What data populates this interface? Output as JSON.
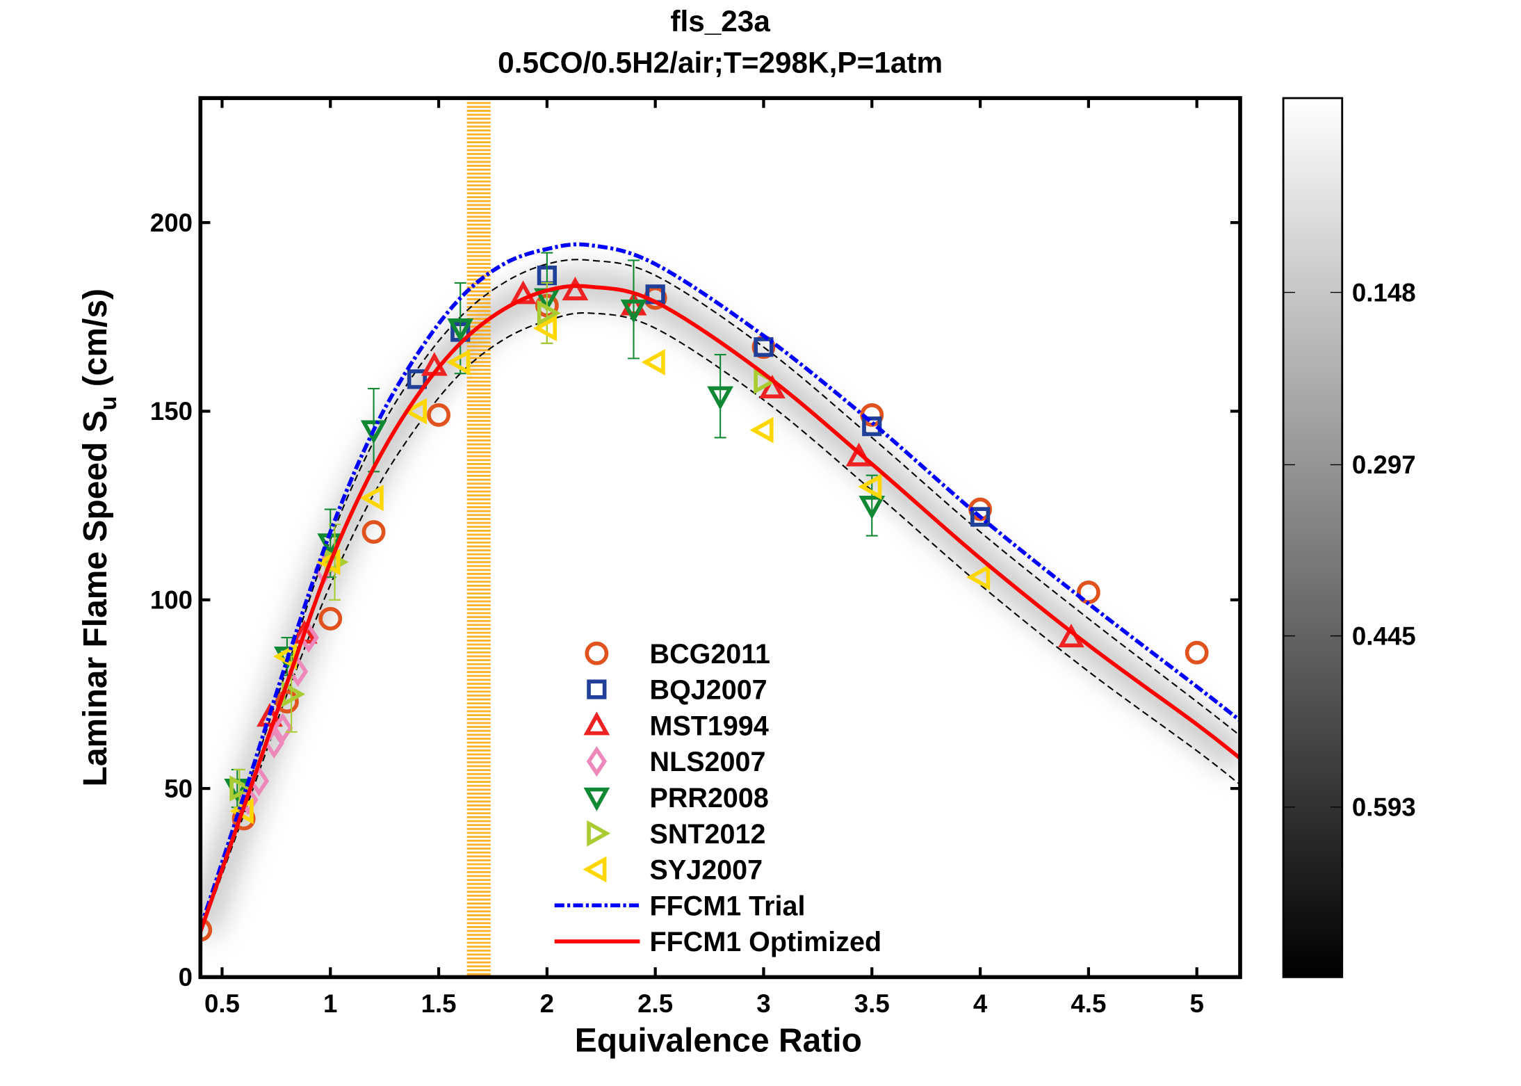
{
  "chart_data": {
    "type": "scatter",
    "title": "fls_23a",
    "subtitle": "0.5CO/0.5H2/air;T=298K,P=1atm",
    "xlabel": "Equivalence Ratio",
    "ylabel_main": "Laminar Flame Speed S",
    "ylabel_sub": "u",
    "ylabel_unit": " (cm/s)",
    "xlim": [
      0.4,
      5.2
    ],
    "ylim": [
      0,
      233
    ],
    "xticks": [
      0.5,
      1,
      1.5,
      2,
      2.5,
      3,
      3.5,
      4,
      4.5,
      5
    ],
    "xtick_labels": [
      "0.5",
      "1",
      "1.5",
      "2",
      "2.5",
      "3",
      "3.5",
      "4",
      "4.5",
      "5"
    ],
    "yticks": [
      0,
      50,
      100,
      150,
      200
    ],
    "ytick_labels": [
      "0",
      "50",
      "100",
      "150",
      "200"
    ],
    "grid": false,
    "legend_placement": "lower-center",
    "highlight_band": {
      "x": [
        1.63,
        1.74
      ],
      "color": "#FFA500"
    },
    "colorbar": {
      "range": [
        -0.02,
        0.74
      ],
      "colormap": "gray (white=low, black=high)",
      "ticks": [
        0.148,
        0.297,
        0.445,
        0.593
      ],
      "tick_labels": [
        "0.148",
        "0.297",
        "0.445",
        "0.593"
      ]
    },
    "series": [
      {
        "name": "BCG2011",
        "marker": "circle",
        "color": "#E0531F",
        "x": [
          0.4,
          0.6,
          0.8,
          1.0,
          1.2,
          1.5,
          2.0,
          2.5,
          3.0,
          3.5,
          4.0,
          4.5,
          5.0
        ],
        "y": [
          12.5,
          42,
          73,
          95,
          118,
          149,
          178,
          180,
          167,
          149,
          124,
          102,
          86
        ]
      },
      {
        "name": "BQJ2007",
        "marker": "square",
        "color": "#1F3F99",
        "x": [
          1.4,
          1.6,
          2.0,
          2.5,
          3.0,
          3.5,
          4.0
        ],
        "y": [
          158.5,
          171,
          186,
          181,
          167,
          146,
          122
        ]
      },
      {
        "name": "MST1994",
        "marker": "triangle-up",
        "color": "#EE2222",
        "x": [
          0.72,
          0.88,
          1.48,
          1.89,
          2.13,
          2.4,
          3.04,
          3.44,
          4.42
        ],
        "y": [
          69,
          91,
          162,
          181,
          182,
          178,
          156,
          138,
          90
        ]
      },
      {
        "name": "NLS2007",
        "marker": "diamond",
        "color": "#EE88BB",
        "x": [
          0.62,
          0.67,
          0.74,
          0.78,
          0.85,
          0.9,
          0.97
        ],
        "y": [
          47,
          52,
          62,
          66,
          81,
          90,
          108
        ]
      },
      {
        "name": "PRR2008",
        "marker": "triangle-down",
        "color": "#118833",
        "x": [
          0.57,
          0.8,
          1.0,
          1.2,
          1.6,
          2.0,
          2.4,
          2.8,
          3.5
        ],
        "y": [
          50,
          85,
          115,
          145,
          172,
          180,
          177,
          154,
          125
        ],
        "error": [
          5,
          5,
          9,
          11,
          12,
          12,
          13,
          11,
          8
        ]
      },
      {
        "name": "SNT2012",
        "marker": "triangle-right",
        "color": "#AACC33",
        "x": [
          0.58,
          0.82,
          1.02,
          2.0,
          3.0
        ],
        "y": [
          50,
          75,
          110,
          176,
          158
        ],
        "error": [
          5,
          10,
          10,
          8,
          0
        ]
      },
      {
        "name": "SYJ2007",
        "marker": "triangle-left",
        "color": "#FFD700",
        "x": [
          0.6,
          0.8,
          1.0,
          1.2,
          1.4,
          1.6,
          2.0,
          2.5,
          3.0,
          3.5,
          4.0
        ],
        "y": [
          44,
          85,
          110,
          127,
          150,
          163,
          172,
          163,
          145,
          130,
          106
        ]
      }
    ],
    "curves": [
      {
        "name": "FFCM1 Trial",
        "style": "dash-dot",
        "color": "#0000FF",
        "x": [
          0.4,
          0.6,
          0.8,
          1.0,
          1.2,
          1.4,
          1.6,
          1.8,
          2.0,
          2.2,
          2.5,
          3.0,
          3.5,
          4.0,
          4.5,
          5.0,
          5.2
        ],
        "y": [
          13,
          48,
          84,
          118,
          145,
          165,
          180,
          189,
          193,
          194,
          189,
          170,
          147,
          122,
          99,
          77,
          68
        ]
      },
      {
        "name": "FFCM1 Optimized",
        "style": "solid",
        "color": "#FF0000",
        "x": [
          0.4,
          0.6,
          0.8,
          1.0,
          1.2,
          1.4,
          1.6,
          1.8,
          2.0,
          2.2,
          2.5,
          3.0,
          3.5,
          4.0,
          4.5,
          5.0,
          5.2
        ],
        "y": [
          12,
          45,
          78,
          110,
          135,
          154,
          168,
          177,
          182,
          183,
          179,
          160,
          136,
          111,
          88,
          67,
          58
        ]
      }
    ],
    "uncertainty_bounds": {
      "style": "dashed",
      "color": "#000000",
      "x": [
        0.4,
        0.6,
        0.8,
        1.0,
        1.2,
        1.4,
        1.6,
        1.8,
        2.0,
        2.2,
        2.5,
        3.0,
        3.5,
        4.0,
        4.5,
        5.0,
        5.2
      ],
      "upper": [
        12.5,
        47,
        82,
        116,
        142,
        161,
        175,
        184,
        189,
        190,
        186,
        167,
        143,
        118,
        95,
        73,
        64
      ],
      "lower": [
        11.5,
        43,
        75,
        104,
        128,
        146,
        160,
        169,
        174,
        176,
        172,
        153,
        129,
        104,
        81,
        60,
        51
      ]
    }
  }
}
